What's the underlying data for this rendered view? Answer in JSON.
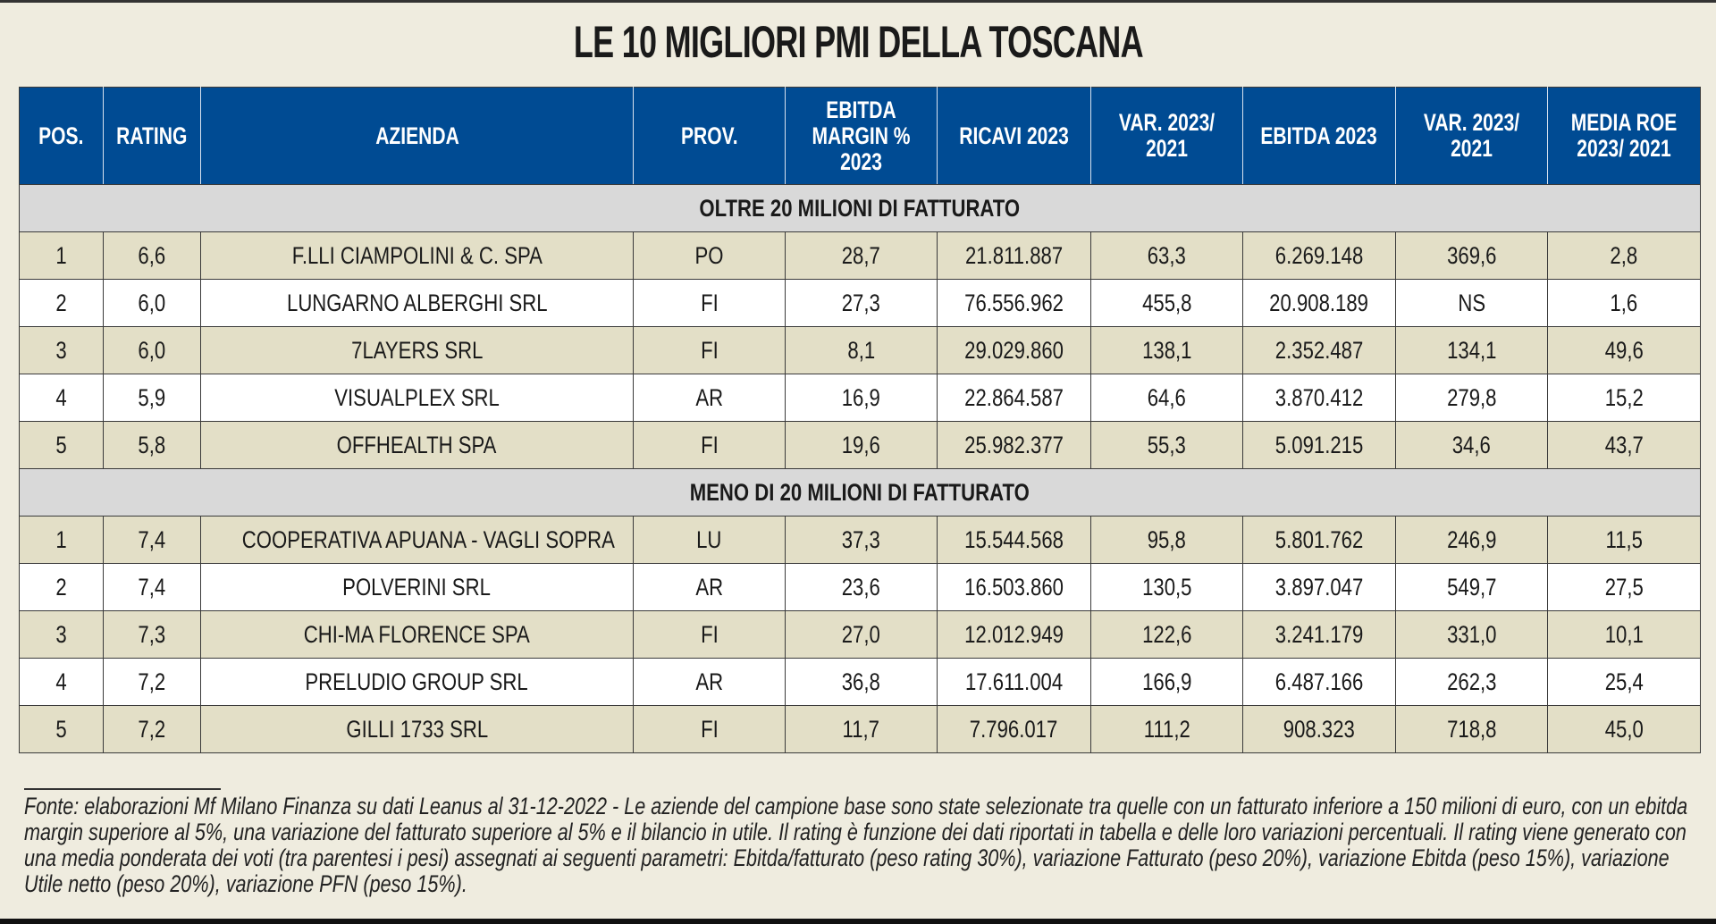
{
  "title": "LE 10 MIGLIORI PMI DELLA TOSCANA",
  "columns": [
    "POS.",
    "RATING",
    "AZIENDA",
    "PROV.",
    "EBITDA MARGIN % 2023",
    "RICAVI 2023",
    "VAR. 2023/ 2021",
    "EBITDA 2023",
    "VAR. 2023/ 2021",
    "MEDIA ROE 2023/ 2021"
  ],
  "sections": [
    {
      "label": "OLTRE 20 MILIONI DI FATTURATO",
      "rows": [
        [
          "1",
          "6,6",
          "F.LLI CIAMPOLINI & C. SPA",
          "PO",
          "28,7",
          "21.811.887",
          "63,3",
          "6.269.148",
          "369,6",
          "2,8"
        ],
        [
          "2",
          "6,0",
          "LUNGARNO ALBERGHI SRL",
          "FI",
          "27,3",
          "76.556.962",
          "455,8",
          "20.908.189",
          "NS",
          "1,6"
        ],
        [
          "3",
          "6,0",
          "7LAYERS SRL",
          "FI",
          "8,1",
          "29.029.860",
          "138,1",
          "2.352.487",
          "134,1",
          "49,6"
        ],
        [
          "4",
          "5,9",
          "VISUALPLEX SRL",
          "AR",
          "16,9",
          "22.864.587",
          "64,6",
          "3.870.412",
          "279,8",
          "15,2"
        ],
        [
          "5",
          "5,8",
          "OFFHEALTH SPA",
          "FI",
          "19,6",
          "25.982.377",
          "55,3",
          "5.091.215",
          "34,6",
          "43,7"
        ]
      ]
    },
    {
      "label": "MENO DI 20 MILIONI DI FATTURATO",
      "rows": [
        [
          "1",
          "7,4",
          "COOPERATIVA APUANA - VAGLI SOPRA",
          "LU",
          "37,3",
          "15.544.568",
          "95,8",
          "5.801.762",
          "246,9",
          "11,5"
        ],
        [
          "2",
          "7,4",
          "POLVERINI SRL",
          "AR",
          "23,6",
          "16.503.860",
          "130,5",
          "3.897.047",
          "549,7",
          "27,5"
        ],
        [
          "3",
          "7,3",
          "CHI-MA FLORENCE SPA",
          "FI",
          "27,0",
          "12.012.949",
          "122,6",
          "3.241.179",
          "331,0",
          "10,1"
        ],
        [
          "4",
          "7,2",
          "PRELUDIO GROUP SRL",
          "AR",
          "36,8",
          "17.611.004",
          "166,9",
          "6.487.166",
          "262,3",
          "25,4"
        ],
        [
          "5",
          "7,2",
          "GILLI 1733 SRL",
          "FI",
          "11,7",
          "7.796.017",
          "111,2",
          "908.323",
          "718,8",
          "45,0"
        ]
      ]
    }
  ],
  "footnote": "Fonte: elaborazioni Mf Milano Finanza su dati Leanus al 31-12-2022 - Le aziende del campione base sono state selezionate tra quelle con un fatturato inferiore a 150 milioni di euro, con un ebitda margin superiore al 5%, una variazione del fatturato superiore al 5% e il bilancio in utile. Il rating è funzione dei dati riportati in tabella e delle loro variazioni percentuali. Il rating viene generato con una media ponderata dei voti (tra parentesi i pesi) assegnati ai seguenti parametri: Ebitda/fatturato (peso rating 30%), variazione Fatturato (peso 20%), variazione Ebitda (peso 15%), variazione Utile netto (peso 20%), variazione PFN (peso 15%).",
  "colors": {
    "header": "#004b93",
    "section": "#d9d9d9",
    "row_alt": "#e3dfc7",
    "background": "#efecdf"
  }
}
